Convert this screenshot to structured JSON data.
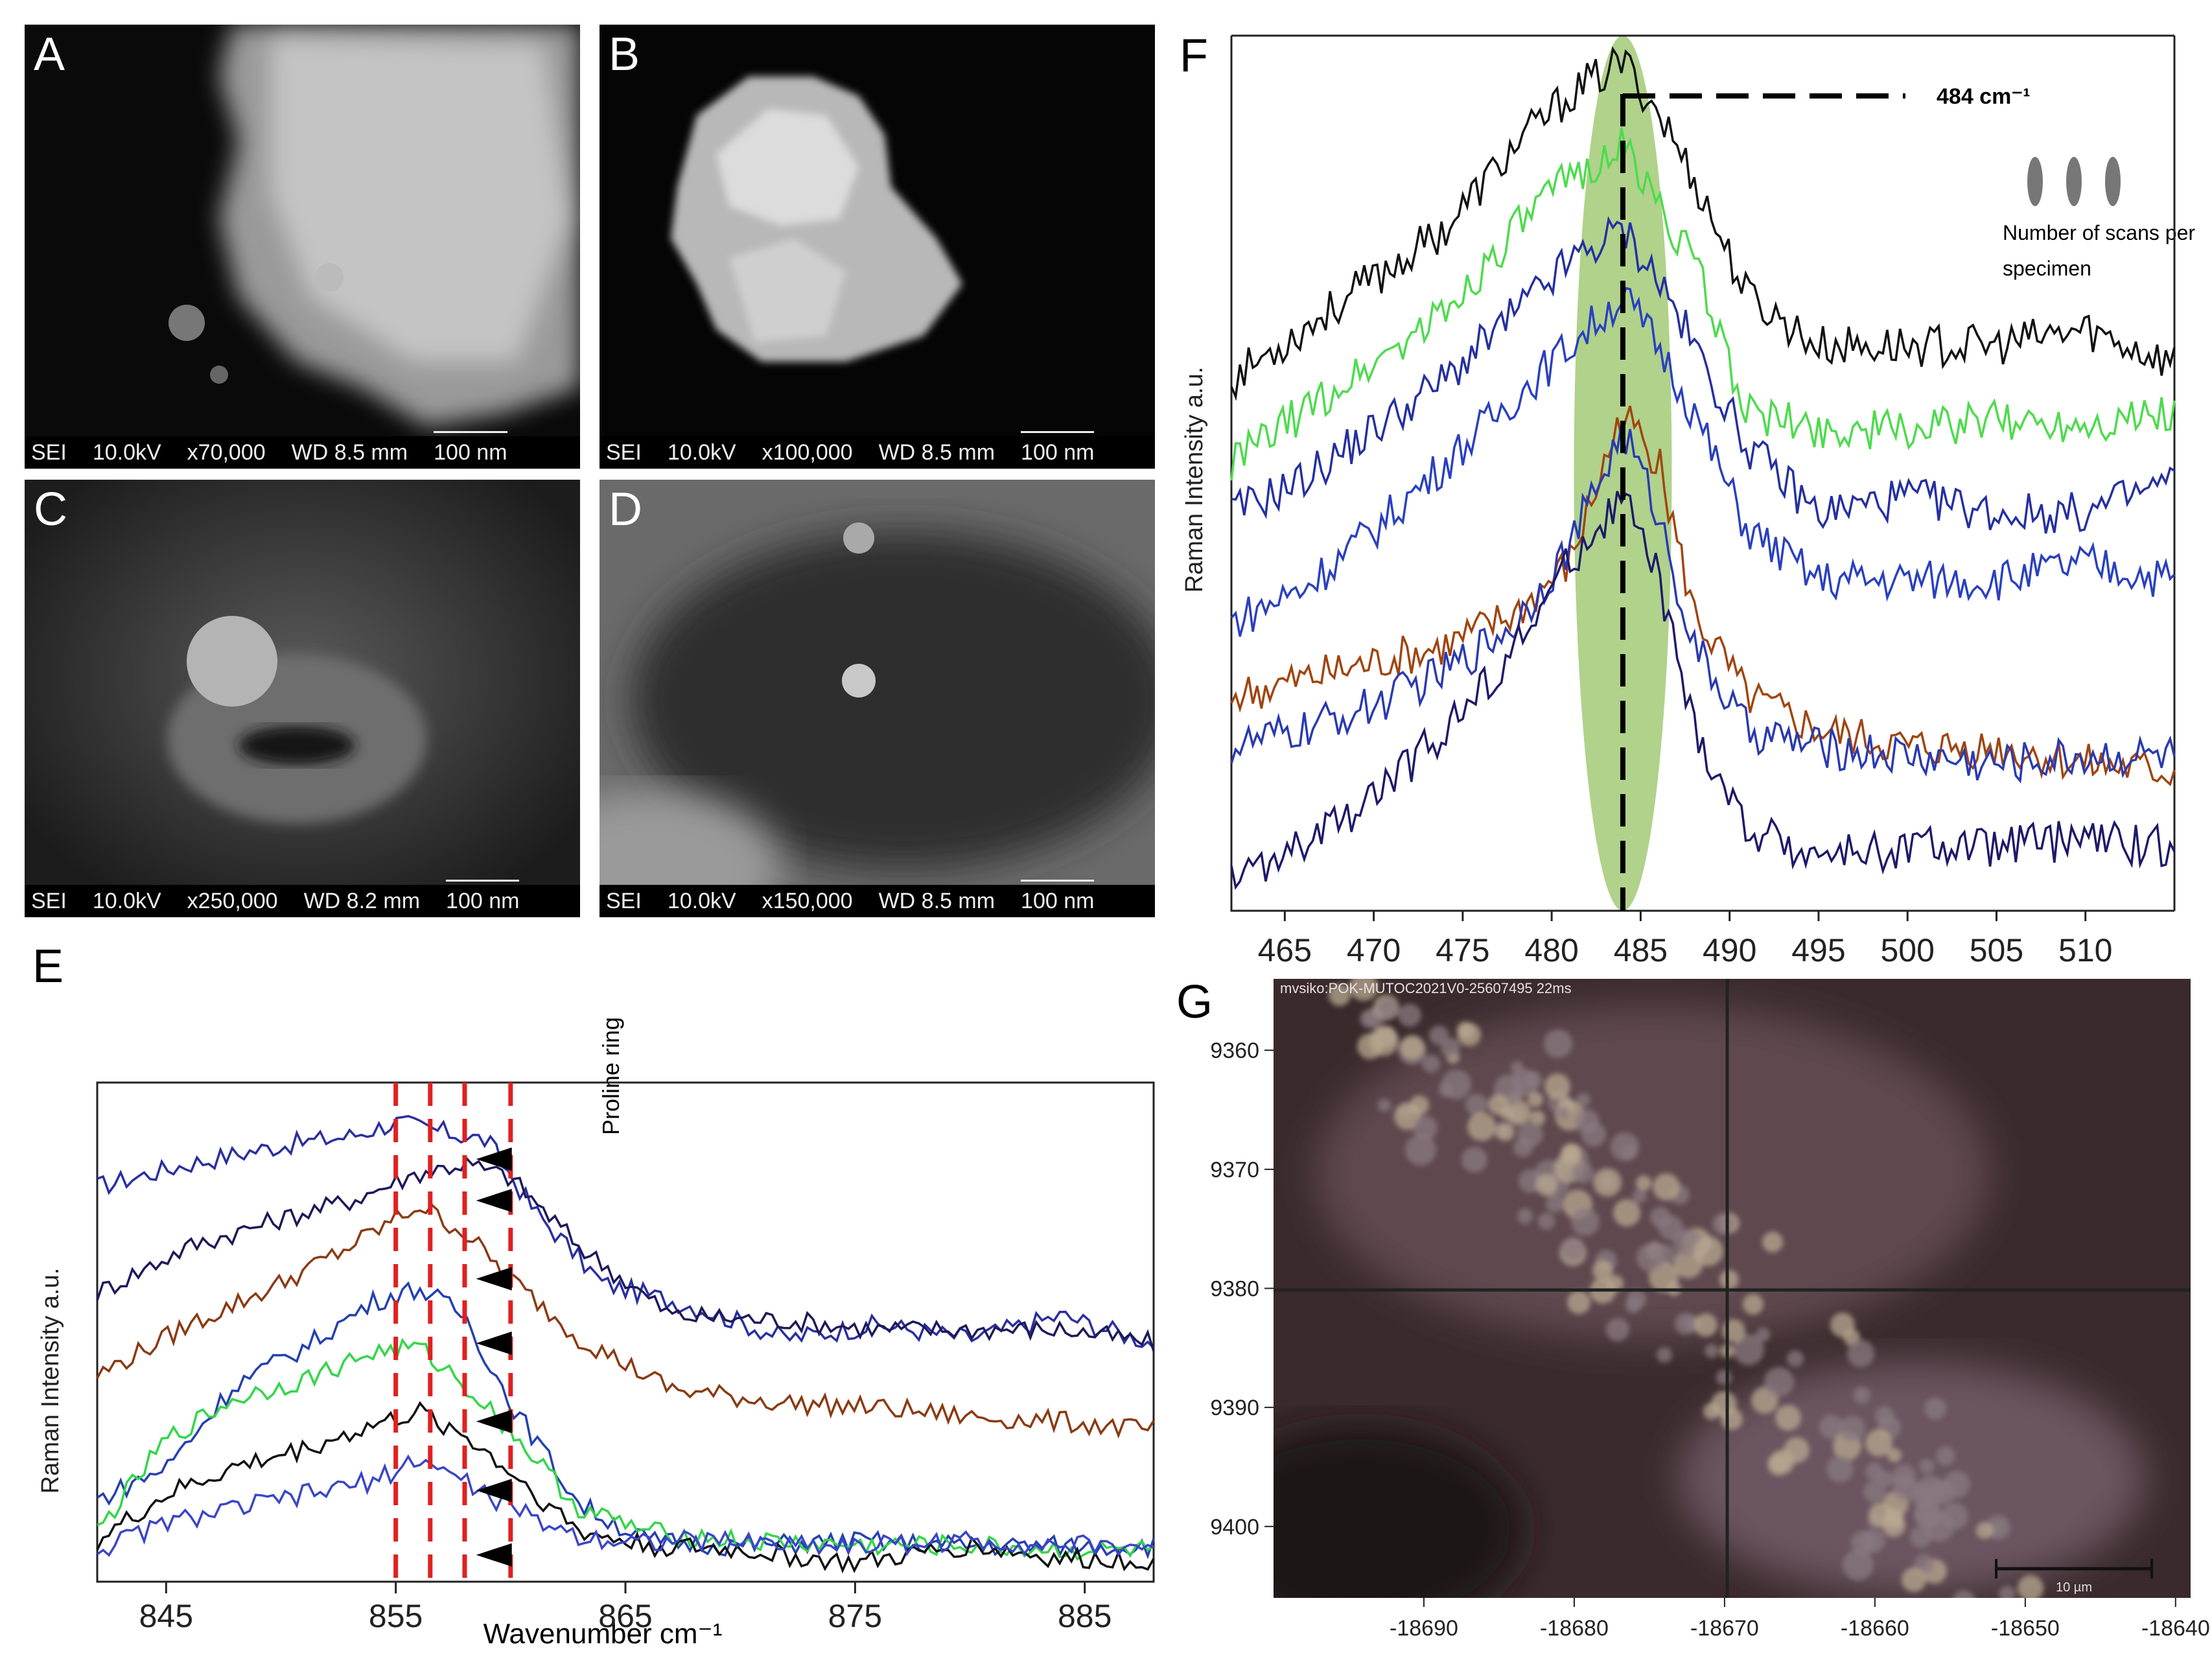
{
  "sem_panels": [
    {
      "label": "A",
      "footer": {
        "mode": "SEI",
        "kv": "10.0kV",
        "mag": "x70,000",
        "wd": "WD  8.5 mm",
        "scale": "100 nm"
      }
    },
    {
      "label": "B",
      "footer": {
        "mode": "SEI",
        "kv": "10.0kV",
        "mag": "x100,000",
        "wd": "WD  8.5 mm",
        "scale": "100 nm"
      }
    },
    {
      "label": "C",
      "footer": {
        "mode": "SEI",
        "kv": "10.0kV",
        "mag": "x250,000",
        "wd": "WD  8.2 mm",
        "scale": "100 nm"
      }
    },
    {
      "label": "D",
      "footer": {
        "mode": "SEI",
        "kv": "10.0kV",
        "mag": "x150,000",
        "wd": "WD  8.5 mm",
        "scale": "100 nm"
      }
    }
  ],
  "panel_E": {
    "label": "E",
    "ylabel": "Raman Intensity a.u.",
    "xlabel": "Wavenumber cm⁻¹",
    "annotation": "Proline ring",
    "chart_data": {
      "type": "line",
      "xlim": [
        842,
        888
      ],
      "x_ticks": [
        845,
        855,
        865,
        875,
        885
      ],
      "dashed_markers": [
        855,
        856.5,
        858,
        860
      ],
      "series": [
        {
          "color": "#2a2fa0",
          "x": [
            842,
            846,
            850,
            853,
            855,
            857,
            859,
            861,
            864,
            868,
            872,
            876,
            880,
            884,
            888
          ],
          "y": [
            0.83,
            0.88,
            0.92,
            0.94,
            0.97,
            0.95,
            0.93,
            0.78,
            0.62,
            0.57,
            0.5,
            0.53,
            0.5,
            0.55,
            0.49
          ]
        },
        {
          "color": "#1d1a5a",
          "x": [
            842,
            846,
            850,
            853,
            856,
            858,
            860,
            863,
            867,
            872,
            876,
            880,
            884,
            888
          ],
          "y": [
            0.6,
            0.7,
            0.76,
            0.8,
            0.86,
            0.88,
            0.85,
            0.7,
            0.55,
            0.54,
            0.52,
            0.52,
            0.52,
            0.49
          ]
        },
        {
          "color": "#8b3a12",
          "x": [
            842,
            846,
            850,
            853,
            856,
            858,
            860,
            863,
            867,
            872,
            876,
            880,
            884,
            888
          ],
          "y": [
            0.42,
            0.53,
            0.62,
            0.7,
            0.79,
            0.73,
            0.63,
            0.5,
            0.39,
            0.36,
            0.35,
            0.33,
            0.32,
            0.3
          ]
        },
        {
          "color": "#2540b0",
          "x": [
            842,
            845,
            848,
            851,
            854,
            856,
            858,
            860,
            863,
            866,
            870,
            875,
            880,
            884,
            888
          ],
          "y": [
            0.15,
            0.22,
            0.4,
            0.48,
            0.58,
            0.61,
            0.55,
            0.36,
            0.14,
            0.06,
            0.05,
            0.06,
            0.05,
            0.05,
            0.05
          ]
        },
        {
          "color": "#33d64a",
          "x": [
            842,
            845,
            848,
            851,
            854,
            856,
            858,
            860,
            863,
            866,
            870,
            875,
            880,
            884,
            888
          ],
          "y": [
            0.08,
            0.28,
            0.37,
            0.41,
            0.47,
            0.48,
            0.4,
            0.3,
            0.13,
            0.08,
            0.06,
            0.05,
            0.05,
            0.04,
            0.04
          ]
        },
        {
          "color": "#111111",
          "x": [
            842,
            845,
            848,
            851,
            854,
            856,
            858,
            860,
            863,
            866,
            870,
            875,
            880,
            884,
            888
          ],
          "y": [
            0.06,
            0.16,
            0.22,
            0.26,
            0.31,
            0.34,
            0.29,
            0.21,
            0.08,
            0.05,
            0.04,
            0.01,
            0.05,
            0.02,
            0.02
          ]
        },
        {
          "color": "#3b45c8",
          "x": [
            842,
            845,
            848,
            851,
            854,
            856,
            858,
            860,
            863,
            866,
            870,
            875,
            880,
            884,
            888
          ],
          "y": [
            0.04,
            0.1,
            0.13,
            0.16,
            0.19,
            0.24,
            0.19,
            0.13,
            0.07,
            0.06,
            0.06,
            0.05,
            0.06,
            0.05,
            0.05
          ]
        }
      ],
      "arrows": [
        {
          "x": 858.5,
          "y": 0.89
        },
        {
          "x": 858.5,
          "y": 0.8
        },
        {
          "x": 858.5,
          "y": 0.63
        },
        {
          "x": 858.5,
          "y": 0.49
        },
        {
          "x": 858.5,
          "y": 0.32
        },
        {
          "x": 858.5,
          "y": 0.17
        },
        {
          "x": 858.5,
          "y": 0.03
        }
      ]
    }
  },
  "panel_F": {
    "label": "F",
    "ylabel": "Raman Intensity a.u.",
    "peak_label": "484 cm⁻¹",
    "legend_text_1": "Number of scans per",
    "legend_text_2": "specimen",
    "chart_data": {
      "type": "line",
      "xlim": [
        462,
        515
      ],
      "x_ticks": [
        465,
        470,
        475,
        480,
        485,
        490,
        495,
        500,
        505,
        510
      ],
      "highlight": {
        "center": 484,
        "width": 5.5
      },
      "peak_line_x": 484,
      "series": [
        {
          "color": "#111111",
          "x": [
            462,
            466,
            470,
            474,
            478,
            481,
            484,
            486,
            488,
            491,
            495,
            500,
            505,
            510,
            515
          ],
          "y": [
            0.62,
            0.68,
            0.74,
            0.8,
            0.9,
            0.96,
            1.0,
            0.94,
            0.86,
            0.72,
            0.66,
            0.66,
            0.66,
            0.68,
            0.64
          ]
        },
        {
          "color": "#4ddb4d",
          "x": [
            462,
            466,
            470,
            474,
            478,
            481,
            484,
            486,
            488,
            491,
            495,
            500,
            505,
            510,
            515
          ],
          "y": [
            0.52,
            0.58,
            0.64,
            0.7,
            0.8,
            0.86,
            0.9,
            0.83,
            0.76,
            0.58,
            0.56,
            0.56,
            0.57,
            0.57,
            0.58
          ]
        },
        {
          "color": "#2530a0",
          "x": [
            462,
            466,
            470,
            474,
            478,
            481,
            484,
            486,
            488,
            491,
            495,
            500,
            505,
            510,
            515
          ],
          "y": [
            0.46,
            0.5,
            0.56,
            0.62,
            0.7,
            0.76,
            0.8,
            0.74,
            0.66,
            0.54,
            0.46,
            0.48,
            0.46,
            0.46,
            0.5
          ]
        },
        {
          "color": "#2a40c0",
          "x": [
            462,
            466,
            470,
            474,
            478,
            481,
            484,
            486,
            488,
            491,
            495,
            500,
            505,
            510,
            515
          ],
          "y": [
            0.33,
            0.37,
            0.44,
            0.52,
            0.6,
            0.66,
            0.72,
            0.66,
            0.58,
            0.44,
            0.38,
            0.38,
            0.38,
            0.4,
            0.38
          ]
        },
        {
          "color": "#a04510",
          "x": [
            462,
            466,
            470,
            474,
            478,
            481,
            484,
            486,
            488,
            491,
            495,
            500,
            505,
            510,
            515
          ],
          "y": [
            0.24,
            0.26,
            0.28,
            0.3,
            0.34,
            0.4,
            0.58,
            0.52,
            0.34,
            0.24,
            0.2,
            0.18,
            0.18,
            0.16,
            0.15
          ]
        },
        {
          "color": "#2a3ab0",
          "x": [
            462,
            466,
            470,
            474,
            478,
            481,
            484,
            486,
            488,
            491,
            495,
            500,
            505,
            510,
            515
          ],
          "y": [
            0.18,
            0.2,
            0.23,
            0.27,
            0.33,
            0.42,
            0.56,
            0.46,
            0.3,
            0.2,
            0.18,
            0.17,
            0.16,
            0.17,
            0.17
          ]
        },
        {
          "color": "#1d1a6a",
          "x": [
            462,
            466,
            470,
            474,
            478,
            481,
            484,
            486,
            488,
            491,
            495,
            500,
            505,
            510,
            515
          ],
          "y": [
            0.02,
            0.06,
            0.12,
            0.2,
            0.3,
            0.4,
            0.48,
            0.38,
            0.2,
            0.08,
            0.05,
            0.06,
            0.06,
            0.07,
            0.06
          ]
        }
      ]
    }
  },
  "panel_G": {
    "label": "G",
    "header_text": "mvsiko:POK-MUTOC2021V0-25607495 22ms",
    "scale_text": "10 µm",
    "chart_data": {
      "type": "scatter",
      "x_ticks": [
        -18690,
        -18680,
        -18670,
        -18660,
        -18650,
        -18640
      ],
      "y_ticks": [
        9360,
        9370,
        9380,
        9390,
        9400
      ],
      "xlim": [
        -18700,
        -18639
      ],
      "ylim": [
        9354,
        9406
      ]
    }
  }
}
